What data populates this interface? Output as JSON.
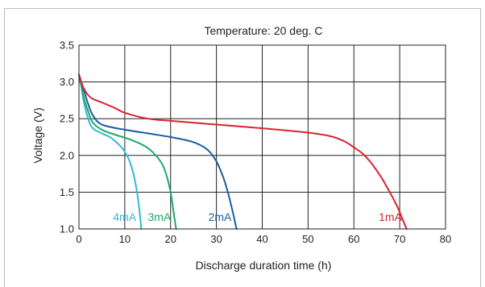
{
  "clipped_heading": "",
  "chart_data": {
    "type": "line",
    "title": "Temperature: 20 deg. C",
    "xlabel": "Discharge duration time (h)",
    "ylabel": "Voltage (V)",
    "xlim": [
      0,
      80
    ],
    "ylim": [
      1.0,
      3.5
    ],
    "xticks": [
      "0",
      "10",
      "20",
      "30",
      "40",
      "50",
      "60",
      "70",
      "80"
    ],
    "yticks": [
      "1.0",
      "1.5",
      "2.0",
      "2.5",
      "3.0",
      "3.5"
    ],
    "grid": true,
    "legend": "inline labels near curve ends",
    "series": [
      {
        "name": "4mA",
        "color": "#33b8d6",
        "x": [
          0,
          0.5,
          1,
          2,
          3,
          5,
          7,
          9,
          10,
          11,
          12,
          12.8,
          13.3,
          13.6
        ],
        "y": [
          3.1,
          2.95,
          2.75,
          2.5,
          2.37,
          2.3,
          2.24,
          2.13,
          2.05,
          1.93,
          1.72,
          1.45,
          1.2,
          1.0
        ]
      },
      {
        "name": "3mA",
        "color": "#1fa86b",
        "x": [
          0,
          0.5,
          1,
          2,
          3,
          5,
          8,
          11,
          14,
          16,
          18,
          19,
          20,
          20.6,
          21.2
        ],
        "y": [
          3.1,
          2.95,
          2.8,
          2.6,
          2.45,
          2.35,
          2.28,
          2.22,
          2.14,
          2.05,
          1.9,
          1.75,
          1.5,
          1.25,
          1.0
        ]
      },
      {
        "name": "2mA",
        "color": "#1a5da0",
        "x": [
          0,
          0.5,
          1,
          2,
          3,
          5,
          10,
          15,
          20,
          25,
          28,
          30,
          31.5,
          32.5,
          33.5,
          34.4
        ],
        "y": [
          3.1,
          3.0,
          2.9,
          2.7,
          2.55,
          2.42,
          2.35,
          2.3,
          2.25,
          2.18,
          2.08,
          1.92,
          1.7,
          1.5,
          1.25,
          1.0
        ]
      },
      {
        "name": "1mA",
        "color": "#d9232e",
        "x": [
          0,
          0.5,
          1,
          2,
          3,
          5,
          8,
          10,
          15,
          20,
          30,
          40,
          50,
          55,
          58,
          60,
          62,
          64,
          66,
          68,
          69.5,
          70.5,
          71.5
        ],
        "y": [
          3.1,
          3.0,
          2.92,
          2.82,
          2.77,
          2.72,
          2.64,
          2.58,
          2.5,
          2.47,
          2.42,
          2.37,
          2.31,
          2.26,
          2.19,
          2.11,
          2.02,
          1.88,
          1.7,
          1.48,
          1.3,
          1.15,
          1.0
        ]
      }
    ]
  }
}
